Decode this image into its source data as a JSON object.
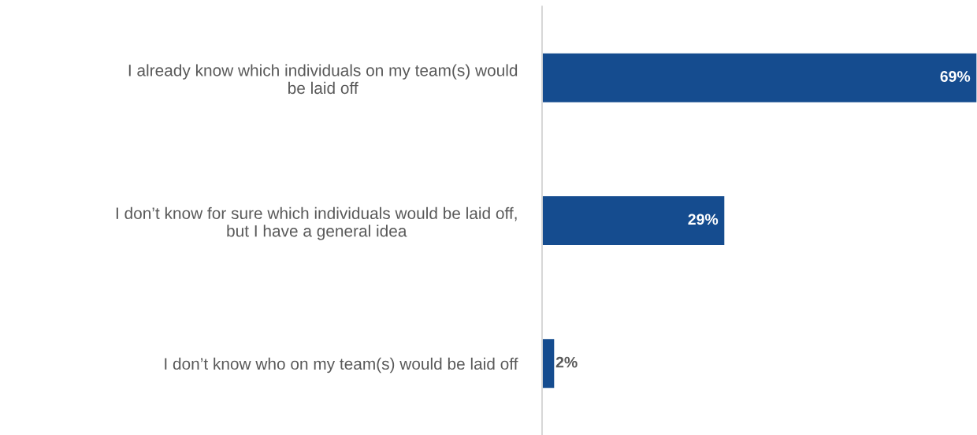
{
  "chart_data": {
    "type": "bar",
    "orientation": "horizontal",
    "categories": [
      "I already know which individuals on my team(s) would\nbe laid off",
      "I don’t know for sure which individuals would be laid off,\nbut I have a general idea",
      "I don’t know who on my team(s) would be laid off"
    ],
    "values": [
      69,
      29,
      2
    ],
    "value_labels": [
      "69%",
      "29%",
      "2%"
    ],
    "color": "#154c8f",
    "grid": false,
    "legend": false
  }
}
